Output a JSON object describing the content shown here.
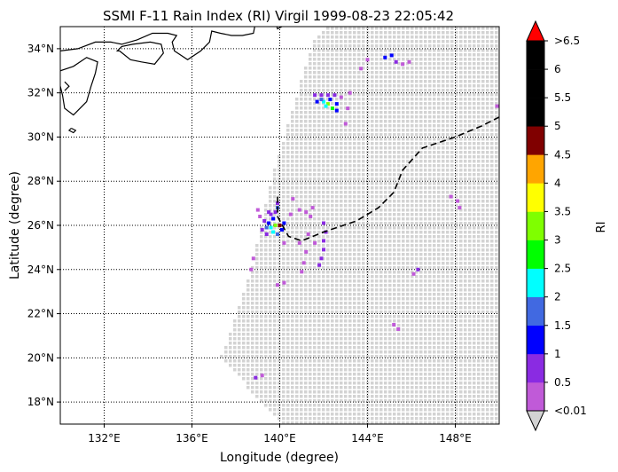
{
  "chart_data": {
    "type": "heatmap",
    "title": "SSMI F-11 Rain Index (RI) Virgil 1999-08-23 22:05:42",
    "xlabel": "Longitude (degree)",
    "ylabel": "Latitude (degree)",
    "xlim": [
      130,
      150
    ],
    "ylim": [
      17,
      35
    ],
    "x_ticks": [
      {
        "value": 132,
        "label": "132°E"
      },
      {
        "value": 136,
        "label": "136°E"
      },
      {
        "value": 140,
        "label": "140°E"
      },
      {
        "value": 144,
        "label": "144°E"
      },
      {
        "value": 148,
        "label": "148°E"
      }
    ],
    "y_ticks": [
      {
        "value": 18,
        "label": "18°N"
      },
      {
        "value": 20,
        "label": "20°N"
      },
      {
        "value": 22,
        "label": "22°N"
      },
      {
        "value": 24,
        "label": "24°N"
      },
      {
        "value": 26,
        "label": "26°N"
      },
      {
        "value": 28,
        "label": "28°N"
      },
      {
        "value": 30,
        "label": "30°N"
      },
      {
        "value": 32,
        "label": "32°N"
      },
      {
        "value": 34,
        "label": "34°N"
      }
    ],
    "grid": true,
    "swath_color": "#d3d3d3",
    "colorbar": {
      "label": "RI",
      "tick_labels": [
        "<0.01",
        "0.5",
        "1",
        "1.5",
        "2",
        "2.5",
        "3",
        "3.5",
        "4",
        "4.5",
        "5",
        "5.5",
        "6",
        ">6.5"
      ],
      "under_color": "#d3d3d3",
      "over_color": "#ff0000",
      "colors": [
        "#c05ad8",
        "#8a2be2",
        "#0000ff",
        "#4169e1",
        "#00ffff",
        "#00ff00",
        "#7fff00",
        "#ffff00",
        "#ffa500",
        "#800000",
        "#000000",
        "#000000",
        "#000000"
      ]
    },
    "track": [
      [
        139.9,
        27.3
      ],
      [
        139.9,
        26.4
      ],
      [
        140.4,
        25.5
      ],
      [
        141.0,
        25.3
      ],
      [
        142.0,
        25.7
      ],
      [
        143.5,
        26.2
      ],
      [
        144.5,
        26.8
      ],
      [
        145.2,
        27.5
      ],
      [
        145.6,
        28.5
      ],
      [
        146.5,
        29.5
      ],
      [
        148.0,
        30.0
      ],
      [
        149.2,
        30.5
      ],
      [
        150.0,
        30.9
      ]
    ],
    "rain_points": [
      [
        139.8,
        26.0,
        3.2
      ],
      [
        140.0,
        26.0,
        4.6
      ],
      [
        139.6,
        25.9,
        2.2
      ],
      [
        139.4,
        25.9,
        1.5
      ],
      [
        139.5,
        26.1,
        1.2
      ],
      [
        139.7,
        25.7,
        2.1
      ],
      [
        139.9,
        25.6,
        1.9
      ],
      [
        140.1,
        25.8,
        1.2
      ],
      [
        140.2,
        26.1,
        1.0
      ],
      [
        139.7,
        26.3,
        1.1
      ],
      [
        139.8,
        26.6,
        0.9
      ],
      [
        139.6,
        26.5,
        0.8
      ],
      [
        139.9,
        27.0,
        0.6
      ],
      [
        139.9,
        26.8,
        1.6
      ],
      [
        139.5,
        26.6,
        0.8
      ],
      [
        139.3,
        26.2,
        0.9
      ],
      [
        139.2,
        25.8,
        0.8
      ],
      [
        139.4,
        25.6,
        0.6
      ],
      [
        139.1,
        26.4,
        0.4
      ],
      [
        139.0,
        26.7,
        0.4
      ],
      [
        140.5,
        26.5,
        0.4
      ],
      [
        140.9,
        26.7,
        0.3
      ],
      [
        141.2,
        26.6,
        0.3
      ],
      [
        141.5,
        26.8,
        0.3
      ],
      [
        141.4,
        26.4,
        0.3
      ],
      [
        140.6,
        27.2,
        0.3
      ],
      [
        140.9,
        25.2,
        0.3
      ],
      [
        141.3,
        25.6,
        0.4
      ],
      [
        141.6,
        25.2,
        0.3
      ],
      [
        142.0,
        26.1,
        0.6
      ],
      [
        142.1,
        25.7,
        0.5
      ],
      [
        142.0,
        25.3,
        0.5
      ],
      [
        142.0,
        24.9,
        0.5
      ],
      [
        141.9,
        24.5,
        0.6
      ],
      [
        141.8,
        24.2,
        0.6
      ],
      [
        141.2,
        24.8,
        0.3
      ],
      [
        141.1,
        24.3,
        0.3
      ],
      [
        141.0,
        23.9,
        0.3
      ],
      [
        140.2,
        25.2,
        0.3
      ],
      [
        138.8,
        24.5,
        0.3
      ],
      [
        138.7,
        24.0,
        0.3
      ],
      [
        139.9,
        23.3,
        0.4
      ],
      [
        140.2,
        23.4,
        0.3
      ],
      [
        139.2,
        19.2,
        0.4
      ],
      [
        138.9,
        19.1,
        0.5
      ],
      [
        146.3,
        24.0,
        0.6
      ],
      [
        146.1,
        23.8,
        0.4
      ],
      [
        145.2,
        21.5,
        0.3
      ],
      [
        145.4,
        21.3,
        0.3
      ],
      [
        147.8,
        27.3,
        0.3
      ],
      [
        148.1,
        27.1,
        0.3
      ],
      [
        148.2,
        26.8,
        0.3
      ],
      [
        149.9,
        31.4,
        0.3
      ],
      [
        142.0,
        31.6,
        2.3
      ],
      [
        142.2,
        31.5,
        3.0
      ],
      [
        142.4,
        31.3,
        2.7
      ],
      [
        142.1,
        31.4,
        2.2
      ],
      [
        141.9,
        31.7,
        1.6
      ],
      [
        141.7,
        31.6,
        1.3
      ],
      [
        142.3,
        31.7,
        1.1
      ],
      [
        142.6,
        31.5,
        1.2
      ],
      [
        142.6,
        31.2,
        1.1
      ],
      [
        142.5,
        31.9,
        0.7
      ],
      [
        142.2,
        31.9,
        0.8
      ],
      [
        141.9,
        31.9,
        0.9
      ],
      [
        141.6,
        31.9,
        0.6
      ],
      [
        142.8,
        31.8,
        0.4
      ],
      [
        143.2,
        32.0,
        0.3
      ],
      [
        143.1,
        31.3,
        0.4
      ],
      [
        143.0,
        30.6,
        0.3
      ],
      [
        143.7,
        33.1,
        0.3
      ],
      [
        144.0,
        33.5,
        0.3
      ],
      [
        144.8,
        33.6,
        1.2
      ],
      [
        145.1,
        33.7,
        1.2
      ],
      [
        145.3,
        33.4,
        0.6
      ],
      [
        145.6,
        33.3,
        0.4
      ],
      [
        145.9,
        33.4,
        0.4
      ]
    ]
  }
}
